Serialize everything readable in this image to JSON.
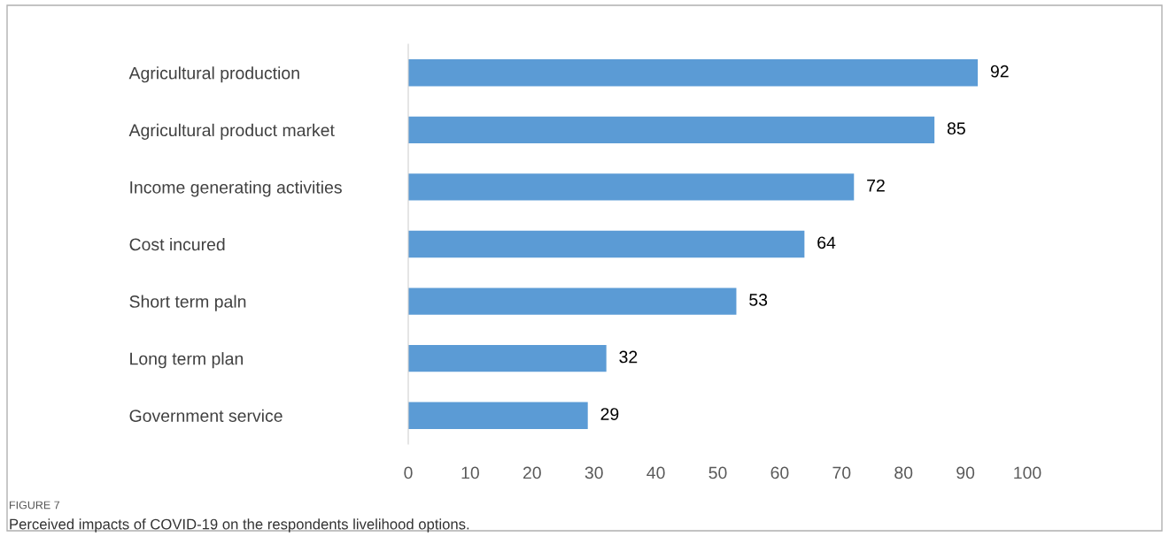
{
  "chart_data": {
    "type": "bar",
    "orientation": "horizontal",
    "categories": [
      "Agricultural production",
      "Agricultural product market",
      "Income generating activities",
      "Cost incured",
      "Short term paln",
      "Long term plan",
      "Government service"
    ],
    "values": [
      92,
      85,
      72,
      64,
      53,
      32,
      29
    ],
    "color": "#5b9bd5",
    "data_labels": true,
    "grid": false,
    "legend": false,
    "xlim": [
      0,
      100
    ],
    "xticks": [
      0,
      10,
      20,
      30,
      40,
      50,
      60,
      70,
      80,
      90,
      100
    ],
    "annotations": [
      "FIGURE 7",
      "Perceived impacts of COVID-19 on the respondents livelihood options."
    ]
  }
}
